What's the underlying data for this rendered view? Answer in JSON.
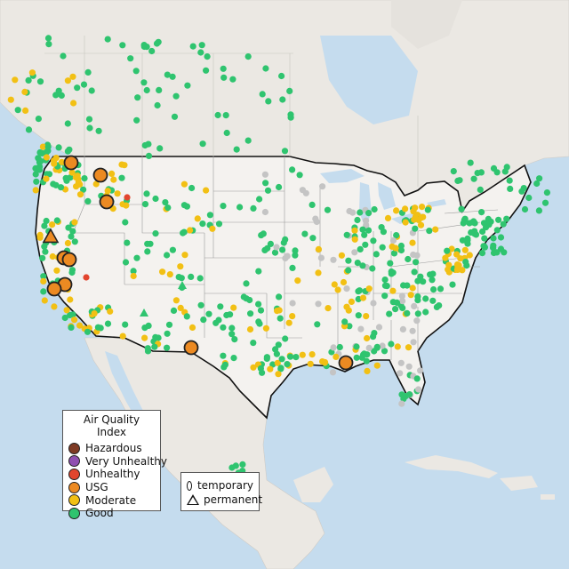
{
  "colors": {
    "hazardous": "#7e3a24",
    "very_unhealthy": "#8f4fb0",
    "unhealthy": "#e2452e",
    "usg": "#ec8a22",
    "moderate": "#f2c014",
    "good": "#2fc46f",
    "no_data": "#c4c4c4",
    "water": "#c5dcee",
    "land": "#ece9e4",
    "us_land": "#f4f2ef"
  },
  "legend": {
    "title": "Air Quality Index",
    "items": [
      {
        "label": "Hazardous",
        "color_key": "hazardous"
      },
      {
        "label": "Very Unhealthy",
        "color_key": "very_unhealthy"
      },
      {
        "label": "Unhealthy",
        "color_key": "unhealthy"
      },
      {
        "label": "USG",
        "color_key": "usg"
      },
      {
        "label": "Moderate",
        "color_key": "moderate"
      },
      {
        "label": "Good",
        "color_key": "good"
      }
    ]
  },
  "monitor_types": {
    "temporary": "temporary",
    "permanent": "permanent"
  },
  "regions": {
    "us_outline": "contiguous-united-states",
    "neighbors": [
      "canada",
      "mexico",
      "caribbean"
    ]
  },
  "large_markers_count_note": "usg-highlighted-sites"
}
